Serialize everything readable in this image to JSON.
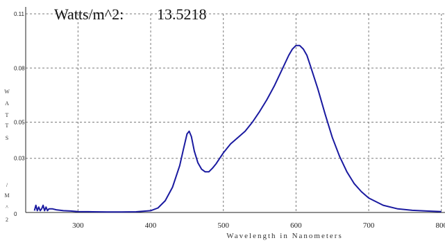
{
  "readout": {
    "label": "Watts/m^2:",
    "value": "13.5218"
  },
  "chart_data": {
    "type": "line",
    "title": "",
    "xlabel": "Wavelength in Nanometers",
    "ylabel": "WATTS/M^2",
    "ylabel_chars": [
      "W",
      "A",
      "T",
      "T",
      "S",
      "/",
      "M",
      "^",
      "2"
    ],
    "xlim": [
      228,
      805
    ],
    "ylim": [
      0,
      0.11
    ],
    "x_ticks": [
      300,
      400,
      500,
      600,
      700,
      800
    ],
    "x_tick_labels": [
      "300",
      "400",
      "500",
      "600",
      "700",
      "800"
    ],
    "y_ticks": [
      0,
      0.03,
      0.05,
      0.08,
      0.11
    ],
    "y_tick_labels": [
      "0",
      "0.03",
      "0.05",
      "0.08",
      "0.11"
    ],
    "grid": true,
    "series": [
      {
        "color": "#1a1aa0",
        "x": [
          240,
          242,
          244,
          246,
          248,
          250,
          252,
          254,
          256,
          258,
          260,
          265,
          270,
          280,
          290,
          300,
          320,
          340,
          360,
          380,
          400,
          410,
          420,
          430,
          440,
          445,
          450,
          453,
          456,
          460,
          465,
          470,
          475,
          480,
          485,
          490,
          495,
          500,
          510,
          520,
          530,
          540,
          550,
          560,
          570,
          580,
          590,
          595,
          600,
          605,
          610,
          615,
          620,
          630,
          640,
          650,
          660,
          670,
          680,
          690,
          700,
          720,
          740,
          760,
          780,
          800
        ],
        "y": [
          0.001,
          0.004,
          0.001,
          0.003,
          0.001,
          0.002,
          0.004,
          0.001,
          0.003,
          0.001,
          0.002,
          0.002,
          0.0015,
          0.001,
          0.0008,
          0.0005,
          0.0004,
          0.0003,
          0.0003,
          0.0004,
          0.001,
          0.0025,
          0.0065,
          0.014,
          0.026,
          0.035,
          0.0435,
          0.045,
          0.042,
          0.034,
          0.0275,
          0.024,
          0.0225,
          0.0225,
          0.0245,
          0.027,
          0.03,
          0.033,
          0.038,
          0.0415,
          0.045,
          0.05,
          0.056,
          0.0625,
          0.07,
          0.0785,
          0.087,
          0.0905,
          0.0925,
          0.0925,
          0.0905,
          0.087,
          0.081,
          0.0685,
          0.0545,
          0.0415,
          0.031,
          0.0225,
          0.016,
          0.0115,
          0.008,
          0.004,
          0.002,
          0.0012,
          0.0008,
          0.0005
        ]
      }
    ]
  },
  "colors": {
    "line": "#1a1aa0",
    "grid": "#7a7a7a",
    "axis": "#222222"
  }
}
